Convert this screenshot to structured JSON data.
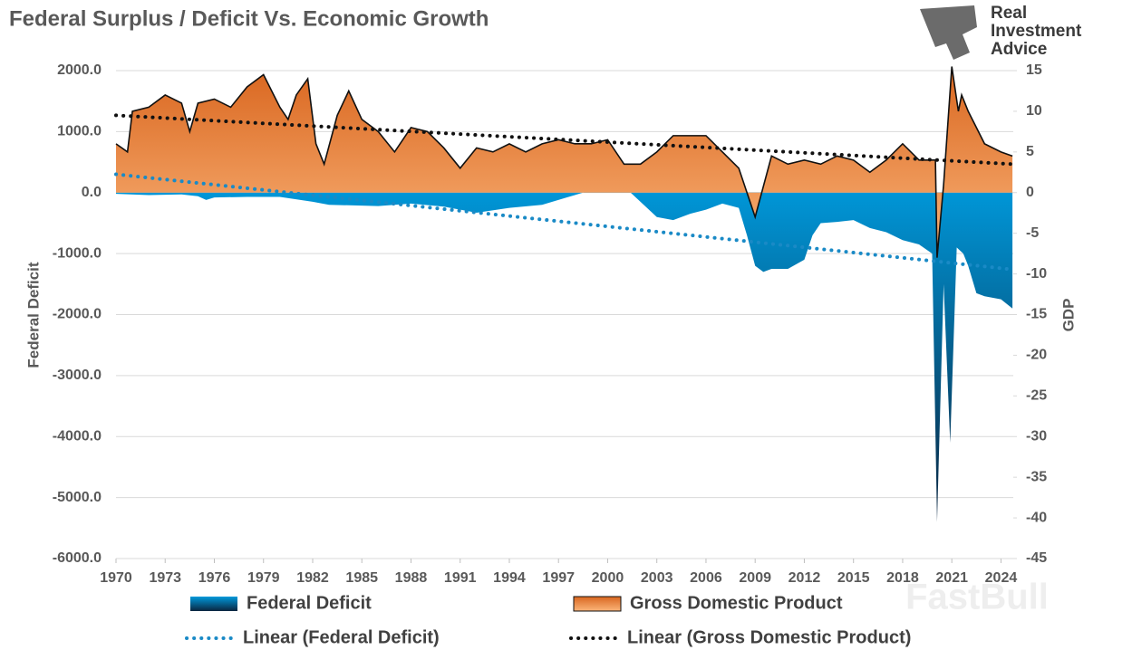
{
  "chart_data": {
    "type": "area",
    "title": "Federal Surplus / Deficit Vs. Economic Growth",
    "brand": [
      "Real",
      "Investment",
      "Advice"
    ],
    "watermark": "FastBull",
    "y_label": "Federal Deficit",
    "y2_label": "GDP",
    "xlim": [
      1970,
      2024.75
    ],
    "xticks": [
      1970,
      1973,
      1976,
      1979,
      1982,
      1985,
      1988,
      1991,
      1994,
      1997,
      2000,
      2003,
      2006,
      2009,
      2012,
      2015,
      2018,
      2021,
      2024
    ],
    "ylim": [
      -6000,
      2000
    ],
    "yticks": [
      {
        "value": -6000,
        "label": "-6000.0"
      },
      {
        "value": -5000,
        "label": "-5000.0"
      },
      {
        "value": -4000,
        "label": "-4000.0"
      },
      {
        "value": -3000,
        "label": "-3000.0"
      },
      {
        "value": -2000,
        "label": "-2000.0"
      },
      {
        "value": -1000,
        "label": "-1000.0"
      },
      {
        "value": 0,
        "label": "0.0"
      },
      {
        "value": 1000,
        "label": "1000.0"
      },
      {
        "value": 2000,
        "label": "2000.0"
      }
    ],
    "y2lim": [
      -45,
      15
    ],
    "y2ticks": [
      -45,
      -40,
      -35,
      -30,
      -25,
      -20,
      -15,
      -10,
      -5,
      0,
      5,
      10,
      15
    ],
    "grid": true,
    "series": [
      {
        "name": "Federal Deficit",
        "axis": "y",
        "style": "area",
        "color": "#0099db",
        "color2": "#0a2540",
        "x": [
          1970,
          1972,
          1974,
          1975,
          1975.5,
          1976,
          1978,
          1980,
          1982,
          1983,
          1986,
          1988,
          1990,
          1992,
          1994,
          1996,
          1997.5,
          1998.5,
          2000,
          2001,
          2002,
          2003,
          2004,
          2005,
          2006,
          2007,
          2008,
          2008.5,
          2009,
          2009.5,
          2010,
          2011,
          2012,
          2012.5,
          2013,
          2014,
          2015,
          2016,
          2017,
          2018,
          2019,
          2019.8,
          2020.1,
          2020.5,
          2020.9,
          2021.3,
          2021.7,
          2022,
          2022.5,
          2023,
          2024,
          2024.7
        ],
        "values": [
          -20,
          -40,
          -30,
          -60,
          -120,
          -80,
          -70,
          -70,
          -150,
          -200,
          -220,
          -180,
          -230,
          -330,
          -250,
          -200,
          -80,
          0,
          150,
          100,
          -150,
          -400,
          -450,
          -350,
          -280,
          -180,
          -250,
          -700,
          -1200,
          -1300,
          -1250,
          -1250,
          -1100,
          -700,
          -500,
          -480,
          -450,
          -580,
          -650,
          -780,
          -850,
          -1000,
          -5400,
          -1500,
          -4100,
          -900,
          -1000,
          -1200,
          -1650,
          -1700,
          -1750,
          -1900
        ]
      },
      {
        "name": "Gross Domestic Product",
        "axis": "y2",
        "style": "area",
        "color": "#d9661f",
        "color2": "#fbb57a",
        "x": [
          1970,
          1970.7,
          1971,
          1972,
          1973,
          1974,
          1974.5,
          1975,
          1976,
          1977,
          1978,
          1979,
          1980,
          1980.5,
          1981,
          1981.7,
          1982.2,
          1982.7,
          1983.5,
          1984.2,
          1985,
          1986,
          1987,
          1988,
          1989,
          1990,
          1991,
          1992,
          1993,
          1994,
          1995,
          1996,
          1997,
          1998,
          1999,
          2000,
          2001,
          2002,
          2003,
          2004,
          2005,
          2006,
          2007,
          2008,
          2009,
          2010,
          2011,
          2012,
          2013,
          2014,
          2015,
          2016,
          2017,
          2018,
          2019,
          2020,
          2020.1,
          2020.5,
          2021,
          2021.4,
          2021.6,
          2022,
          2022.5,
          2023,
          2024,
          2024.7
        ],
        "values": [
          6,
          5,
          10,
          10.5,
          12,
          11,
          7.5,
          11,
          11.5,
          10.5,
          13,
          14.5,
          10.5,
          9,
          12,
          14,
          6,
          3.5,
          9.5,
          12.5,
          9,
          7.5,
          5,
          8,
          7.5,
          5.5,
          3,
          5.5,
          5,
          6,
          5,
          6,
          6.5,
          6,
          6,
          6.5,
          3.5,
          3.5,
          5,
          7,
          7,
          7,
          5,
          3,
          -3,
          4.5,
          3.5,
          4,
          3.5,
          4.5,
          4,
          2.5,
          4,
          6,
          4,
          4,
          -8,
          1,
          15.5,
          10,
          12,
          10,
          8,
          6,
          5,
          4.5
        ]
      },
      {
        "name": "Linear (Federal Deficit)",
        "axis": "y",
        "style": "trendline",
        "color": "#1a8ac6",
        "x": [
          1970,
          2024.7
        ],
        "values": [
          300,
          -1260
        ]
      },
      {
        "name": "Linear (Gross Domestic Product)",
        "axis": "y2",
        "style": "trendline",
        "color": "#111111",
        "x": [
          1970,
          2024.7
        ],
        "values": [
          9.5,
          3.5
        ]
      }
    ]
  }
}
